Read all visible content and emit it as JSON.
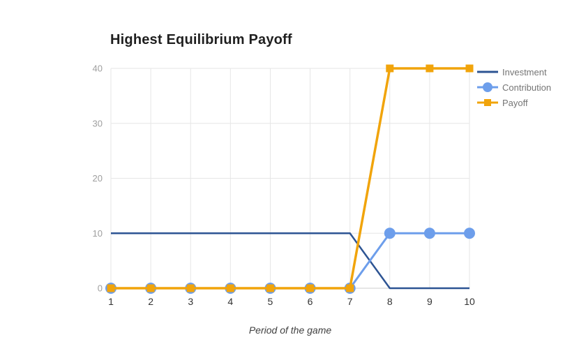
{
  "chart_data": {
    "type": "line",
    "title": "Highest Equilibrium Payoff",
    "xlabel": "Period of the game",
    "ylabel": "",
    "x": [
      1,
      2,
      3,
      4,
      5,
      6,
      7,
      8,
      9,
      10
    ],
    "ylim": [
      0,
      40
    ],
    "yticks": [
      0,
      10,
      20,
      30,
      40
    ],
    "grid": true,
    "legend_position": "right",
    "series": [
      {
        "name": "Investment",
        "color": "#2D5493",
        "marker": "none",
        "line_width": 2.5,
        "values": [
          10,
          10,
          10,
          10,
          10,
          10,
          10,
          0,
          0,
          0
        ]
      },
      {
        "name": "Contribution",
        "color": "#6D9EEB",
        "marker": "circle",
        "marker_size": 16,
        "line_width": 3,
        "values": [
          0,
          0,
          0,
          0,
          0,
          0,
          0,
          10,
          10,
          10
        ]
      },
      {
        "name": "Payoff",
        "color": "#F1A40B",
        "marker": "square",
        "marker_size": 11,
        "line_width": 3.5,
        "values": [
          0,
          0,
          0,
          0,
          0,
          0,
          0,
          40,
          40,
          40
        ]
      }
    ]
  },
  "style_colors": {
    "grid": "#E6E6E6",
    "baseline": "#CCCCCC",
    "y_tick_label": "#9E9E9E",
    "x_tick_label": "#333333",
    "legend_text": "#757575",
    "title_text": "#1F1F1F"
  }
}
